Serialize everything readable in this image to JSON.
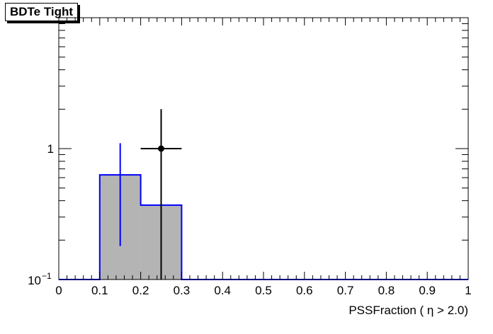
{
  "chart_data": {
    "type": "histogram",
    "title": "BDTe Tight",
    "xlabel": "PSSFraction ( η > 2.0)",
    "ylabel": "",
    "xlim": [
      0,
      1
    ],
    "ylim": [
      0.1,
      10
    ],
    "yscale": "log",
    "grid": false,
    "x_tick_labels": [
      "0",
      "0.1",
      "0.2",
      "0.3",
      "0.4",
      "0.5",
      "0.6",
      "0.7",
      "0.8",
      "0.9",
      "1"
    ],
    "y_tick_labels": [
      {
        "value": 0.1,
        "base": "10",
        "exp": "−1"
      },
      {
        "value": 1,
        "base": "1",
        "exp": ""
      }
    ],
    "histogram": {
      "bin_edges": [
        0.1,
        0.2,
        0.3
      ],
      "values": [
        0.63,
        0.37
      ],
      "fill": "#b4b4b4",
      "line": "#0000ff",
      "error_bar": {
        "x": 0.15,
        "low": 0.18,
        "high": 1.1
      }
    },
    "points": [
      {
        "x": 0.25,
        "y": 1.0,
        "xerr": 0.05,
        "ylow": 0.1,
        "yhigh": 2.0
      }
    ]
  },
  "colors": {
    "marker": "#000000",
    "hist_line": "#0000ff",
    "hist_fill": "#b4b4b4"
  }
}
